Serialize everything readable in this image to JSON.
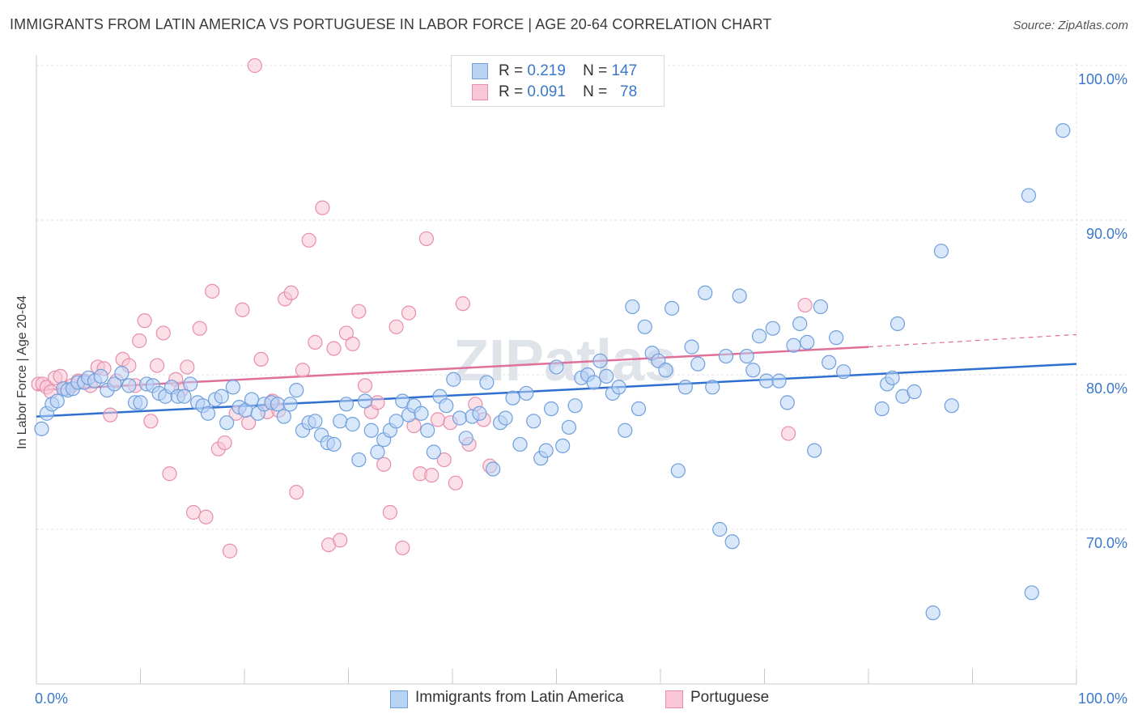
{
  "title": "IMMIGRANTS FROM LATIN AMERICA VS PORTUGUESE IN LABOR FORCE | AGE 20-64 CORRELATION CHART",
  "source": "Source: ZipAtlas.com",
  "watermark": "ZIPatlas",
  "legend": {
    "r_label": "R =",
    "n_label": "N =",
    "rows": [
      {
        "r": "0.219",
        "n": "147",
        "fill": "#b9d3f5",
        "stroke": "#6f9fdc"
      },
      {
        "r": "0.091",
        "n": "78",
        "fill": "#f8c6d6",
        "stroke": "#e88eab"
      }
    ]
  },
  "bottom_legend": [
    "Immigrants from Latin America",
    "Portuguese"
  ],
  "chart_data": {
    "type": "scatter",
    "ylabel": "In Labor Force | Age 20-64",
    "xlim": [
      0,
      100
    ],
    "ylim": [
      60,
      102
    ],
    "x_tick_labels": [
      "0.0%",
      "100.0%"
    ],
    "y_ticks": [
      70,
      80,
      90,
      100
    ],
    "y_tick_labels": [
      "70.0%",
      "80.0%",
      "90.0%",
      "100.0%"
    ],
    "grid": true,
    "colors": {
      "blue_fill": "#b9d3f5",
      "blue_stroke": "#6f9fdc",
      "blue_line": "#2f6fcf",
      "pink_fill": "#f8c6d6",
      "pink_stroke": "#e88eab",
      "pink_line": "#e0709a"
    },
    "series": [
      {
        "name": "Immigrants from Latin America",
        "trend": {
          "x0": 0,
          "y0": 77.3,
          "x1": 100,
          "y1": 80.7
        },
        "points": [
          [
            0.5,
            76.5
          ],
          [
            1,
            77.5
          ],
          [
            1.5,
            78.1
          ],
          [
            2,
            78.3
          ],
          [
            2.6,
            79.1
          ],
          [
            3,
            79.0
          ],
          [
            3.5,
            79.1
          ],
          [
            4,
            79.5
          ],
          [
            4.6,
            79.5
          ],
          [
            5,
            79.8
          ],
          [
            5.6,
            79.6
          ],
          [
            6.2,
            79.9
          ],
          [
            6.8,
            79.0
          ],
          [
            7.5,
            79.4
          ],
          [
            8.2,
            80.1
          ],
          [
            8.9,
            79.3
          ],
          [
            9.5,
            78.2
          ],
          [
            10,
            78.2
          ],
          [
            10.6,
            79.4
          ],
          [
            11.2,
            79.3
          ],
          [
            11.8,
            78.8
          ],
          [
            12.4,
            78.6
          ],
          [
            13,
            79.2
          ],
          [
            13.6,
            78.6
          ],
          [
            14.2,
            78.6
          ],
          [
            14.8,
            79.4
          ],
          [
            15.5,
            78.2
          ],
          [
            16,
            78.0
          ],
          [
            16.5,
            77.5
          ],
          [
            17.2,
            78.4
          ],
          [
            17.8,
            78.6
          ],
          [
            18.3,
            76.9
          ],
          [
            18.9,
            79.2
          ],
          [
            19.5,
            77.9
          ],
          [
            20.1,
            77.7
          ],
          [
            20.7,
            78.4
          ],
          [
            21.3,
            77.5
          ],
          [
            21.9,
            78.1
          ],
          [
            22.6,
            78.2
          ],
          [
            23.2,
            78.1
          ],
          [
            23.8,
            77.3
          ],
          [
            24.4,
            78.1
          ],
          [
            25,
            79.0
          ],
          [
            25.6,
            76.4
          ],
          [
            26.2,
            76.9
          ],
          [
            26.8,
            77.0
          ],
          [
            27.4,
            76.1
          ],
          [
            28,
            75.6
          ],
          [
            28.6,
            75.5
          ],
          [
            29.2,
            77.0
          ],
          [
            29.8,
            78.1
          ],
          [
            30.4,
            76.8
          ],
          [
            31,
            74.5
          ],
          [
            31.6,
            78.3
          ],
          [
            32.2,
            76.4
          ],
          [
            32.8,
            75.0
          ],
          [
            33.4,
            75.8
          ],
          [
            34,
            76.4
          ],
          [
            34.6,
            77.0
          ],
          [
            35.2,
            78.3
          ],
          [
            35.8,
            77.4
          ],
          [
            36.3,
            78.0
          ],
          [
            37,
            77.5
          ],
          [
            37.6,
            76.4
          ],
          [
            38.2,
            75.0
          ],
          [
            38.8,
            78.6
          ],
          [
            39.4,
            78.0
          ],
          [
            40.1,
            79.7
          ],
          [
            40.7,
            77.2
          ],
          [
            41.3,
            75.9
          ],
          [
            41.9,
            77.3
          ],
          [
            42.6,
            77.5
          ],
          [
            43.3,
            79.5
          ],
          [
            43.9,
            73.9
          ],
          [
            44.6,
            76.9
          ],
          [
            45.1,
            77.2
          ],
          [
            45.8,
            78.5
          ],
          [
            46.5,
            75.5
          ],
          [
            47.1,
            78.8
          ],
          [
            47.8,
            77.0
          ],
          [
            48.5,
            74.6
          ],
          [
            49,
            75.1
          ],
          [
            49.5,
            77.8
          ],
          [
            50,
            80.5
          ],
          [
            50.6,
            75.4
          ],
          [
            51.2,
            76.6
          ],
          [
            51.8,
            78.0
          ],
          [
            52.4,
            79.8
          ],
          [
            53,
            80.0
          ],
          [
            53.6,
            79.5
          ],
          [
            54.2,
            80.9
          ],
          [
            54.8,
            79.9
          ],
          [
            55.4,
            78.8
          ],
          [
            56,
            79.2
          ],
          [
            56.6,
            76.4
          ],
          [
            57.3,
            84.4
          ],
          [
            57.9,
            77.8
          ],
          [
            58.5,
            83.1
          ],
          [
            59.2,
            81.4
          ],
          [
            59.8,
            80.9
          ],
          [
            60.5,
            80.3
          ],
          [
            61.1,
            84.3
          ],
          [
            61.7,
            73.8
          ],
          [
            62.4,
            79.2
          ],
          [
            63,
            81.8
          ],
          [
            63.6,
            80.7
          ],
          [
            64.3,
            85.3
          ],
          [
            65,
            79.2
          ],
          [
            65.7,
            70.0
          ],
          [
            66.3,
            81.2
          ],
          [
            66.9,
            69.2
          ],
          [
            67.6,
            85.1
          ],
          [
            68.3,
            81.2
          ],
          [
            68.9,
            80.3
          ],
          [
            69.5,
            82.5
          ],
          [
            70.2,
            79.6
          ],
          [
            70.8,
            83.0
          ],
          [
            71.4,
            79.6
          ],
          [
            72.2,
            78.2
          ],
          [
            72.8,
            81.9
          ],
          [
            73.4,
            83.3
          ],
          [
            74.1,
            82.1
          ],
          [
            74.8,
            75.1
          ],
          [
            75.4,
            84.4
          ],
          [
            76.2,
            80.8
          ],
          [
            76.9,
            82.4
          ],
          [
            77.6,
            80.2
          ],
          [
            81.3,
            77.8
          ],
          [
            81.8,
            79.4
          ],
          [
            82.3,
            79.8
          ],
          [
            82.8,
            83.3
          ],
          [
            83.3,
            78.6
          ],
          [
            84.4,
            78.9
          ],
          [
            86.2,
            64.6
          ],
          [
            87,
            88.0
          ],
          [
            88,
            78.0
          ],
          [
            95.4,
            91.6
          ],
          [
            95.7,
            65.9
          ],
          [
            98.7,
            95.8
          ]
        ]
      },
      {
        "name": "Portuguese",
        "trend": {
          "x0": 0,
          "y0": 79.0,
          "x1": 80,
          "y1": 81.8
        },
        "trend_dashed": {
          "x0": 80,
          "y0": 81.8,
          "x1": 100,
          "y1": 82.6
        },
        "points": [
          [
            0.2,
            79.4
          ],
          [
            0.6,
            79.4
          ],
          [
            1,
            79.2
          ],
          [
            1.4,
            78.9
          ],
          [
            1.8,
            79.8
          ],
          [
            2.3,
            79.9
          ],
          [
            2.8,
            79.1
          ],
          [
            3.4,
            79.3
          ],
          [
            4,
            79.6
          ],
          [
            4.6,
            79.6
          ],
          [
            5.2,
            79.3
          ],
          [
            5.9,
            80.5
          ],
          [
            6.5,
            80.4
          ],
          [
            7.1,
            77.4
          ],
          [
            7.7,
            79.6
          ],
          [
            8.3,
            81.0
          ],
          [
            8.9,
            80.6
          ],
          [
            9.5,
            79.3
          ],
          [
            9.9,
            82.2
          ],
          [
            10.4,
            83.5
          ],
          [
            11,
            77.0
          ],
          [
            11.6,
            80.6
          ],
          [
            12.2,
            82.7
          ],
          [
            12.8,
            73.6
          ],
          [
            13.4,
            79.7
          ],
          [
            13.9,
            79.0
          ],
          [
            14.5,
            80.5
          ],
          [
            15.1,
            71.1
          ],
          [
            15.7,
            83.0
          ],
          [
            16.3,
            70.8
          ],
          [
            16.9,
            85.4
          ],
          [
            17.5,
            75.2
          ],
          [
            18.1,
            75.6
          ],
          [
            18.6,
            68.6
          ],
          [
            19.2,
            77.5
          ],
          [
            19.8,
            84.2
          ],
          [
            20.4,
            76.9
          ],
          [
            21,
            100.0
          ],
          [
            21.6,
            81.0
          ],
          [
            22.2,
            77.6
          ],
          [
            22.7,
            78.3
          ],
          [
            23.3,
            77.7
          ],
          [
            23.9,
            84.9
          ],
          [
            24.5,
            85.3
          ],
          [
            25,
            72.4
          ],
          [
            25.6,
            80.3
          ],
          [
            26.2,
            88.7
          ],
          [
            26.8,
            82.1
          ],
          [
            27.5,
            90.8
          ],
          [
            28.1,
            69.0
          ],
          [
            28.6,
            81.7
          ],
          [
            29.2,
            69.3
          ],
          [
            29.8,
            82.7
          ],
          [
            30.4,
            82.0
          ],
          [
            31,
            84.1
          ],
          [
            31.6,
            79.3
          ],
          [
            32.2,
            77.6
          ],
          [
            32.8,
            78.2
          ],
          [
            33.4,
            74.2
          ],
          [
            34,
            71.1
          ],
          [
            34.6,
            83.1
          ],
          [
            35.2,
            68.8
          ],
          [
            35.8,
            84.0
          ],
          [
            36.3,
            76.7
          ],
          [
            36.9,
            73.6
          ],
          [
            37.5,
            88.8
          ],
          [
            38,
            73.5
          ],
          [
            38.6,
            77.1
          ],
          [
            39.2,
            74.5
          ],
          [
            39.8,
            76.9
          ],
          [
            40.3,
            73.0
          ],
          [
            41,
            84.6
          ],
          [
            41.6,
            75.5
          ],
          [
            42.2,
            78.1
          ],
          [
            43,
            77.1
          ],
          [
            43.6,
            74.1
          ],
          [
            72.3,
            76.2
          ],
          [
            73.9,
            84.5
          ]
        ]
      }
    ]
  }
}
